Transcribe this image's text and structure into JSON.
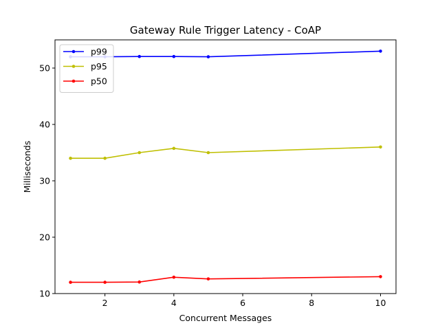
{
  "chart_data": {
    "type": "line",
    "title": "Gateway Rule Trigger Latency - CoAP",
    "xlabel": "Concurrent Messages",
    "ylabel": "Milliseconds",
    "x": [
      1,
      2,
      3,
      4,
      5,
      10
    ],
    "xlim": [
      0.55,
      10.45
    ],
    "ylim": [
      10,
      55
    ],
    "xticks": [
      2,
      4,
      6,
      8,
      10
    ],
    "yticks": [
      10,
      20,
      30,
      40,
      50
    ],
    "grid": false,
    "legend_placement": "top-left",
    "series": [
      {
        "name": "p99",
        "color": "#0000ff",
        "values": [
          52.0,
          52.0,
          52.05,
          52.05,
          52.0,
          53.0
        ]
      },
      {
        "name": "p95",
        "color": "#bfbf00",
        "values": [
          34.0,
          34.0,
          35.0,
          35.75,
          35.0,
          36.0
        ]
      },
      {
        "name": "p50",
        "color": "#ff0000",
        "values": [
          12.0,
          12.0,
          12.05,
          12.9,
          12.6,
          13.0
        ]
      }
    ]
  }
}
